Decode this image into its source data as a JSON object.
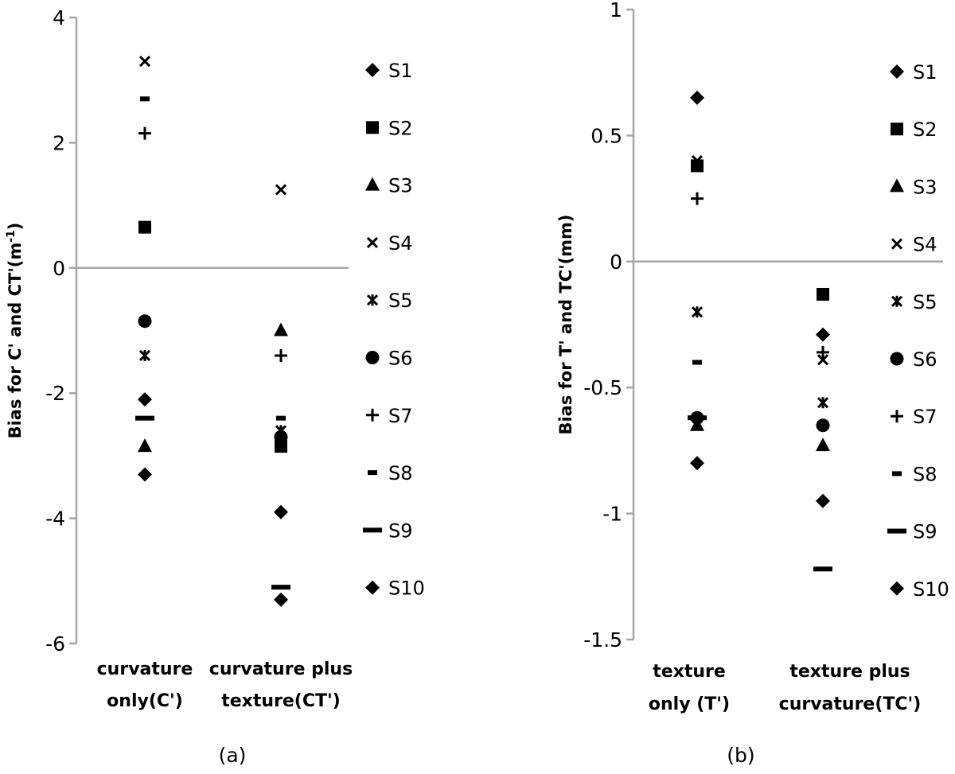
{
  "chart_data": [
    {
      "type": "scatter",
      "panel_label": "(a)",
      "ylabel": "Bias for C' and CT'(m-1)",
      "ylabel_main": "Bias for C' and CT'(m",
      "ylabel_sup": "-1",
      "ylabel_tail": ")",
      "ylim": [
        -6,
        4
      ],
      "yticks": [
        "4",
        "2",
        "0",
        "-2",
        "-4",
        "-6"
      ],
      "ytick_values": [
        4,
        2,
        0,
        -2,
        -4,
        -6
      ],
      "categories": [
        [
          "curvature",
          "only(C')"
        ],
        [
          "curvature plus",
          "texture(CT')"
        ]
      ],
      "grid": false,
      "legend_position": "right",
      "series": [
        {
          "name": "S1",
          "marker": "diamond",
          "values": [
            -2.1,
            -3.9
          ]
        },
        {
          "name": "S2",
          "marker": "square",
          "values": [
            0.65,
            -2.85
          ]
        },
        {
          "name": "S3",
          "marker": "triangle",
          "values": [
            -2.85,
            -1.0
          ]
        },
        {
          "name": "S4",
          "marker": "x",
          "values": [
            3.3,
            1.25
          ]
        },
        {
          "name": "S5",
          "marker": "star",
          "values": [
            -1.4,
            -2.6
          ]
        },
        {
          "name": "S6",
          "marker": "circle",
          "values": [
            -0.85,
            -2.7
          ]
        },
        {
          "name": "S7",
          "marker": "plus",
          "values": [
            2.15,
            -1.4
          ]
        },
        {
          "name": "S8",
          "marker": "short-dash",
          "values": [
            2.7,
            -2.4
          ]
        },
        {
          "name": "S9",
          "marker": "long-dash",
          "values": [
            -2.4,
            -5.1
          ]
        },
        {
          "name": "S10",
          "marker": "diamond",
          "values": [
            -3.3,
            -5.3
          ]
        }
      ]
    },
    {
      "type": "scatter",
      "panel_label": "(b)",
      "ylabel": "Bias for T' and TC'(mm)",
      "ylabel_main": "Bias for T' and TC'(mm)",
      "ylabel_sup": "",
      "ylabel_tail": "",
      "ylim": [
        -1.5,
        1
      ],
      "yticks": [
        "1",
        "0.5",
        "0",
        "-0.5",
        "-1",
        "-1.5"
      ],
      "ytick_values": [
        1,
        0.5,
        0,
        -0.5,
        -1,
        -1.5
      ],
      "categories": [
        [
          "texture",
          "only (T')"
        ],
        [
          "texture plus",
          "curvature(TC')"
        ]
      ],
      "grid": false,
      "legend_position": "right",
      "series": [
        {
          "name": "S1",
          "marker": "diamond",
          "values": [
            0.65,
            -0.29
          ]
        },
        {
          "name": "S2",
          "marker": "square",
          "values": [
            0.38,
            -0.13
          ]
        },
        {
          "name": "S3",
          "marker": "triangle",
          "values": [
            -0.65,
            -0.73
          ]
        },
        {
          "name": "S4",
          "marker": "x",
          "values": [
            0.4,
            -0.39
          ]
        },
        {
          "name": "S5",
          "marker": "star",
          "values": [
            -0.2,
            -0.56
          ]
        },
        {
          "name": "S6",
          "marker": "circle",
          "values": [
            -0.62,
            -0.65
          ]
        },
        {
          "name": "S7",
          "marker": "plus",
          "values": [
            0.25,
            -0.36
          ]
        },
        {
          "name": "S8",
          "marker": "short-dash",
          "values": [
            -0.4,
            -0.65
          ]
        },
        {
          "name": "S9",
          "marker": "long-dash",
          "values": [
            -0.62,
            -1.22
          ]
        },
        {
          "name": "S10",
          "marker": "diamond",
          "values": [
            -0.8,
            -0.95
          ]
        }
      ]
    }
  ]
}
